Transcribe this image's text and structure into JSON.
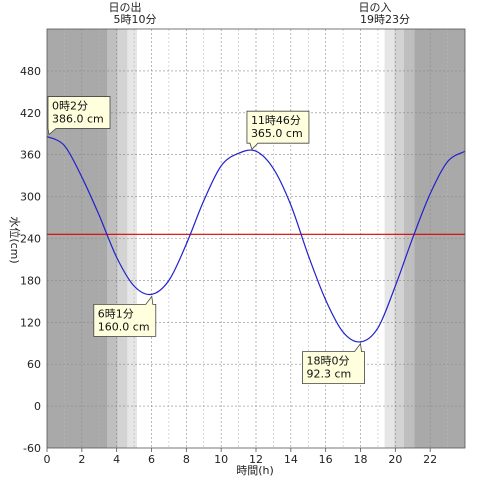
{
  "chart_data": {
    "type": "line",
    "xlabel": "時間(h)",
    "ylabel": "水位(cm)",
    "xlim": [
      0,
      24
    ],
    "ylim": [
      -60,
      540
    ],
    "x_ticks": [
      0,
      2,
      4,
      6,
      8,
      10,
      12,
      14,
      16,
      18,
      20,
      22
    ],
    "y_ticks": [
      -60,
      0,
      60,
      120,
      180,
      240,
      300,
      360,
      420,
      480
    ],
    "reference_line": {
      "y": 246,
      "color": "#dd0000"
    },
    "line_color": "#2222cc",
    "sunrise": {
      "label": "日の出",
      "time": "5時10分",
      "hour": 5.1667
    },
    "sunset": {
      "label": "日の入",
      "time": "19時23分",
      "hour": 19.3833
    },
    "extremes": [
      {
        "kind": "high",
        "hour": 0.033,
        "level": 386.0,
        "time_label": "0時2分",
        "level_label": "386.0 cm"
      },
      {
        "kind": "low",
        "hour": 6.017,
        "level": 160.0,
        "time_label": "6時1分",
        "level_label": "160.0 cm"
      },
      {
        "kind": "high",
        "hour": 11.767,
        "level": 365.0,
        "time_label": "11時46分",
        "level_label": "365.0 cm"
      },
      {
        "kind": "low",
        "hour": 18.0,
        "level": 92.3,
        "time_label": "18時0分",
        "level_label": "92.3 cm"
      }
    ],
    "series": [
      {
        "x": [
          0,
          1,
          2,
          3,
          4,
          5,
          6,
          7,
          8,
          9,
          10,
          11,
          12,
          13,
          14,
          15,
          16,
          17,
          18,
          19,
          20,
          21,
          22,
          23,
          24
        ],
        "y": [
          386,
          373,
          328,
          273,
          213,
          172,
          160,
          180,
          232,
          294,
          344,
          362,
          365,
          340,
          288,
          216,
          152,
          106,
          92,
          112,
          172,
          241,
          304,
          350,
          365
        ]
      }
    ]
  }
}
